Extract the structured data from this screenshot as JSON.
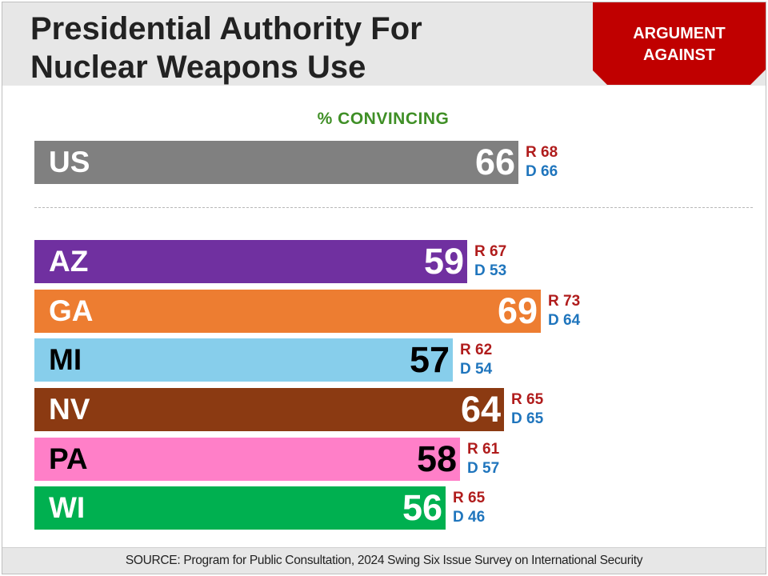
{
  "header": {
    "title_line1": "Presidential Authority For",
    "title_line2": "Nuclear Weapons Use",
    "badge_line1": "ARGUMENT",
    "badge_line2": "AGAINST"
  },
  "footer": {
    "source": "SOURCE: Program for Public Consultation, 2024 Swing Six Issue Survey on International Security"
  },
  "chart_data": {
    "type": "bar",
    "orientation": "horizontal",
    "subtitle": "% CONVINCING",
    "xlim": [
      0,
      100
    ],
    "grid": false,
    "categories": [
      "US",
      "AZ",
      "GA",
      "MI",
      "NV",
      "PA",
      "WI"
    ],
    "values": [
      66,
      59,
      69,
      57,
      64,
      58,
      56
    ],
    "colors": [
      "#808080",
      "#7030a0",
      "#ed7d31",
      "#87ceeb",
      "#8b3a12",
      "#ff7fc8",
      "#00b050"
    ],
    "value_text_colors": [
      "#ffffff",
      "#ffffff",
      "#ffffff",
      "#000000",
      "#ffffff",
      "#000000",
      "#ffffff"
    ],
    "label_text_colors": [
      "#ffffff",
      "#ffffff",
      "#ffffff",
      "#000000",
      "#ffffff",
      "#000000",
      "#ffffff"
    ],
    "republican": [
      68,
      67,
      73,
      62,
      65,
      61,
      65
    ],
    "democrat": [
      66,
      53,
      64,
      54,
      65,
      57,
      46
    ],
    "republican_prefix": "R",
    "democrat_prefix": "D",
    "republican_color": "#b01c1c",
    "democrat_color": "#1f75bd"
  }
}
